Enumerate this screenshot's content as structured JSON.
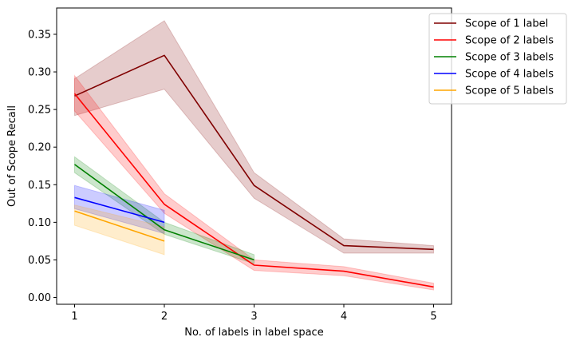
{
  "chart_data": {
    "type": "line",
    "title": "",
    "xlabel": "No. of labels in label space",
    "ylabel": "Out of Scope Recall",
    "xlim": [
      0.8,
      5.2
    ],
    "ylim": [
      -0.009,
      0.385
    ],
    "xticks": [
      1,
      2,
      3,
      4,
      5
    ],
    "xtick_labels": [
      "1",
      "2",
      "3",
      "4",
      "5"
    ],
    "yticks": [
      0.0,
      0.05,
      0.1,
      0.15,
      0.2,
      0.25,
      0.3,
      0.35
    ],
    "ytick_labels": [
      "0.00",
      "0.05",
      "0.10",
      "0.15",
      "0.20",
      "0.25",
      "0.30",
      "0.35"
    ],
    "legend_position": "top-right (outside plot)",
    "grid": false,
    "series": [
      {
        "name": "Scope of 1 label",
        "color": "#800000",
        "x": [
          1,
          2,
          3,
          4,
          5
        ],
        "values": [
          0.268,
          0.322,
          0.149,
          0.069,
          0.064
        ],
        "lower": [
          0.242,
          0.277,
          0.132,
          0.059,
          0.059
        ],
        "upper": [
          0.291,
          0.368,
          0.166,
          0.078,
          0.069
        ]
      },
      {
        "name": "Scope of 2 labels",
        "color": "#ff0000",
        "x": [
          1,
          2,
          3,
          4,
          5
        ],
        "values": [
          0.271,
          0.124,
          0.043,
          0.035,
          0.014
        ],
        "lower": [
          0.248,
          0.112,
          0.036,
          0.029,
          0.01
        ],
        "upper": [
          0.295,
          0.138,
          0.05,
          0.041,
          0.019
        ]
      },
      {
        "name": "Scope of 3 labels",
        "color": "#008000",
        "x": [
          1,
          2,
          3
        ],
        "values": [
          0.177,
          0.09,
          0.05
        ],
        "lower": [
          0.166,
          0.084,
          0.045
        ],
        "upper": [
          0.187,
          0.1,
          0.057
        ]
      },
      {
        "name": "Scope of 4 labels",
        "color": "#0000ff",
        "x": [
          1,
          2
        ],
        "values": [
          0.133,
          0.1
        ],
        "lower": [
          0.118,
          0.085
        ],
        "upper": [
          0.149,
          0.116
        ]
      },
      {
        "name": "Scope of 5 labels",
        "color": "#ffa500",
        "x": [
          1,
          2
        ],
        "values": [
          0.115,
          0.075
        ],
        "lower": [
          0.096,
          0.057
        ],
        "upper": [
          0.123,
          0.094
        ]
      }
    ]
  }
}
